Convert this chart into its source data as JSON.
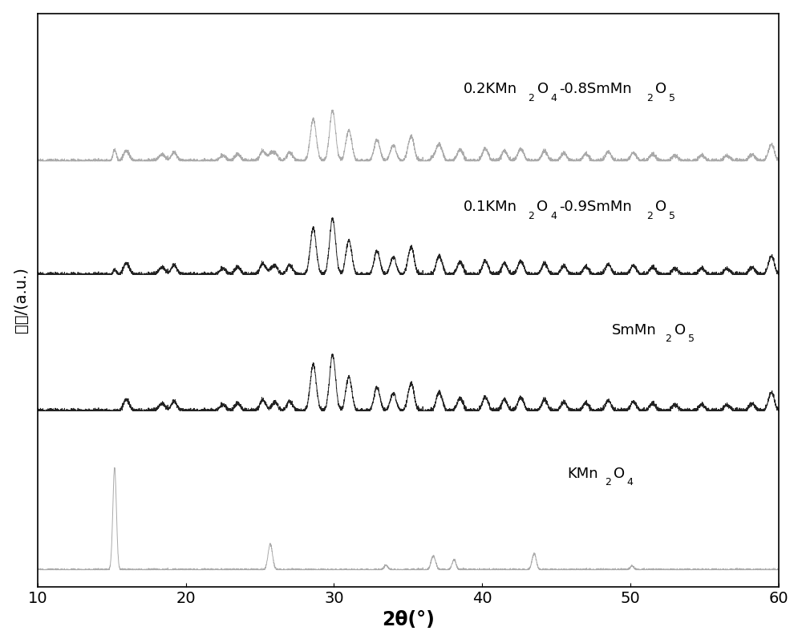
{
  "xlabel": "2θ(°)",
  "ylabel": "强度/(a.u.)",
  "xlim": [
    10,
    60
  ],
  "xticks": [
    10,
    20,
    30,
    40,
    50,
    60
  ],
  "colors": [
    "#aaaaaa",
    "#222222",
    "#222222",
    "#aaaaaa"
  ],
  "offsets": [
    0.0,
    2.8,
    5.2,
    7.2
  ],
  "background_color": "#ffffff",
  "linewidth": 0.7,
  "figsize": [
    10.0,
    8.02
  ],
  "dpi": 100
}
